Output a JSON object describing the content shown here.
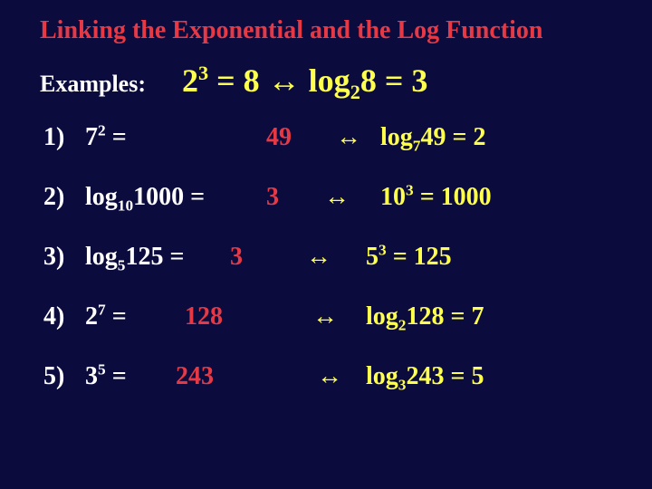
{
  "title": "Linking the Exponential and the Log Function",
  "examplesLabel": "Examples:",
  "mainExample": {
    "expBase": "2",
    "expPow": "3",
    "expVal": "8",
    "logBase": "2",
    "logArg": "8",
    "logVal": "3"
  },
  "rows": [
    {
      "n": "1)",
      "lhsKind": "exp",
      "expBase": "7",
      "expPow": "2",
      "ans": "49",
      "rhsKind": "log",
      "rLogBase": "7",
      "rLogArg": "49",
      "rLogVal": "2"
    },
    {
      "n": "2)",
      "lhsKind": "log",
      "logBase": "10",
      "logArg": "1000",
      "ans": "3",
      "rhsKind": "exp",
      "rExpBase": "10",
      "rExpPow": "3",
      "rExpVal": "1000"
    },
    {
      "n": "3)",
      "lhsKind": "log",
      "logBase": "5",
      "logArg": "125",
      "ans": "3",
      "rhsKind": "exp",
      "rExpBase": "5",
      "rExpPow": "3",
      "rExpVal": "125"
    },
    {
      "n": "4)",
      "lhsKind": "exp",
      "expBase": "2",
      "expPow": "7",
      "ans": "128",
      "rhsKind": "log",
      "rLogBase": "2",
      "rLogArg": "128",
      "rLogVal": "7"
    },
    {
      "n": "5)",
      "lhsKind": "exp",
      "expBase": "3",
      "expPow": "5",
      "ans": "243",
      "rhsKind": "log",
      "rLogBase": "3",
      "rLogArg": "243",
      "rLogVal": "5"
    }
  ],
  "arrow": "↔",
  "colors": {
    "background": "#0b0b3e",
    "title": "#e63946",
    "white": "#ffffff",
    "answer": "#e63946",
    "yellow": "#ffff4d"
  }
}
